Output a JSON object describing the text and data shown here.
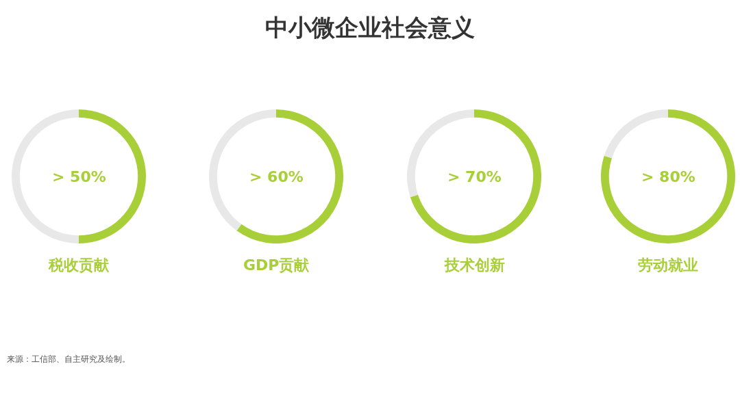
{
  "chart_data": [
    {
      "type": "other",
      "title": "中小微企业社会意义",
      "annotations": [
        "来源：工信部、自主研究及绘制。"
      ]
    },
    {
      "type": "donut",
      "title": "税收贡献",
      "categories": [
        null,
        null
      ],
      "values": [
        50,
        50
      ],
      "colors": [
        "#a8cf38",
        "#e8e8e8"
      ],
      "annotations": [
        "> 50%"
      ]
    },
    {
      "type": "donut",
      "title": "GDP贡献",
      "categories": [
        null,
        null
      ],
      "values": [
        60,
        40
      ],
      "colors": [
        "#a8cf38",
        "#e8e8e8"
      ],
      "annotations": [
        "> 60%"
      ]
    },
    {
      "type": "donut",
      "title": "技术创新",
      "categories": [
        null,
        null
      ],
      "values": [
        70,
        30
      ],
      "colors": [
        "#a8cf38",
        "#e8e8e8"
      ],
      "annotations": [
        "> 70%"
      ]
    },
    {
      "type": "donut",
      "title": "劳动就业",
      "categories": [
        null,
        null
      ],
      "values": [
        80,
        20
      ],
      "colors": [
        "#a8cf38",
        "#e8e8e8"
      ],
      "annotations": [
        "> 80%"
      ]
    }
  ]
}
